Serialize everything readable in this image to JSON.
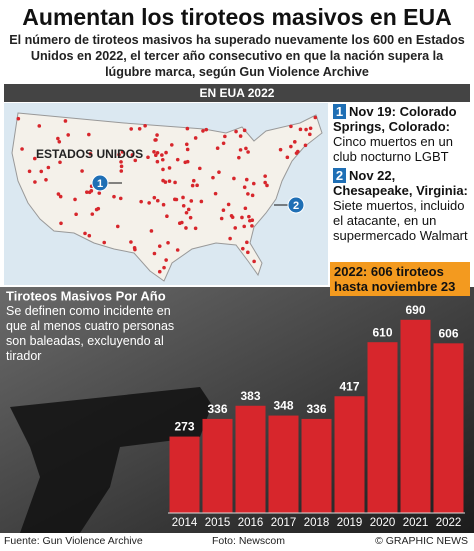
{
  "header": {
    "title": "Aumentan los tiroteos masivos en EUA",
    "subtitle": "El número de tiroteos masivos ha superado nuevamente los 600 en Estados Unidos en 2022, el tercer año consecutivo en que la nación supera la lúgubre marca, según Gun Violence Archive",
    "section": "EN EUA 2022"
  },
  "map": {
    "label": "ESTADOS UNIDOS"
  },
  "notes": [
    {
      "number": "1",
      "heading": "Nov 19: Colorado Springs, Colorado:",
      "text": "Cinco muertos en un club nocturno LGBT"
    },
    {
      "number": "2",
      "heading": "Nov 22, Chesapeake, Virginia:",
      "text": "Siete muertos, incluido el atacante, en un supermercado Walmart"
    }
  ],
  "callout": "2022: 606 tiroteos hasta noviembre 23",
  "chart_data": {
    "type": "bar",
    "title": "Tiroteos Masivos Por Año",
    "subtitle": "Se definen como incidente en que al menos cuatro personas son baleadas, excluyendo al tirador",
    "categories": [
      "2014",
      "2015",
      "2016",
      "2017",
      "2018",
      "2019",
      "2020",
      "2021",
      "2022"
    ],
    "values": [
      273,
      336,
      383,
      348,
      336,
      417,
      610,
      690,
      606
    ],
    "color": "#d7262c",
    "ylim": [
      0,
      700
    ]
  },
  "footer": {
    "source": "Fuente: Gun Violence Archive",
    "photo": "Foto: Newscom",
    "credit": "© GRAPHIC NEWS"
  }
}
